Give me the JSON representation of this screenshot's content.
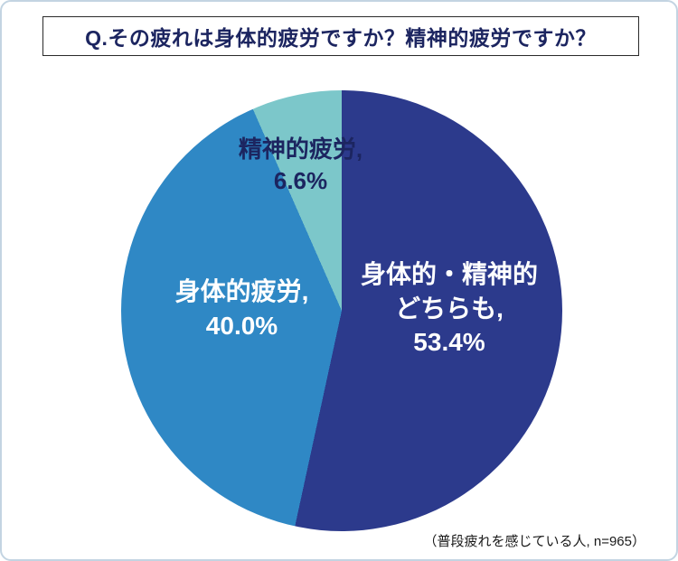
{
  "title": "Q.その疲れは身体的疲労ですか？精神的疲労ですか？",
  "footnote": "（普段疲れを感じている人, n=965）",
  "chart_data": {
    "type": "pie",
    "title": "Q.その疲れは身体的疲労ですか？精神的疲労ですか？",
    "unit": "%",
    "start_angle_deg": 0,
    "direction": "clockwise",
    "slices": [
      {
        "label": "身体的・精神的どちらも",
        "value": 53.4,
        "color": "#2c3a8c"
      },
      {
        "label": "身体的疲労",
        "value": 40.0,
        "color": "#2f88c5"
      },
      {
        "label": "精神的疲労",
        "value": 6.6,
        "color": "#7cc7ca"
      }
    ],
    "note": "（普段疲れを感じている人, n=965）"
  },
  "labels": {
    "both": [
      "身体的・精神的",
      "どちらも,",
      "53.4%"
    ],
    "physical": [
      "身体的疲労,",
      "40.0%"
    ],
    "mental": [
      "精神的疲労,",
      "6.6%"
    ]
  },
  "colors": {
    "title_text": "#1c2560",
    "mental_label_text": "#1c2560",
    "frame_border": "#c3d4e2",
    "title_border": "#2a2a2a"
  }
}
